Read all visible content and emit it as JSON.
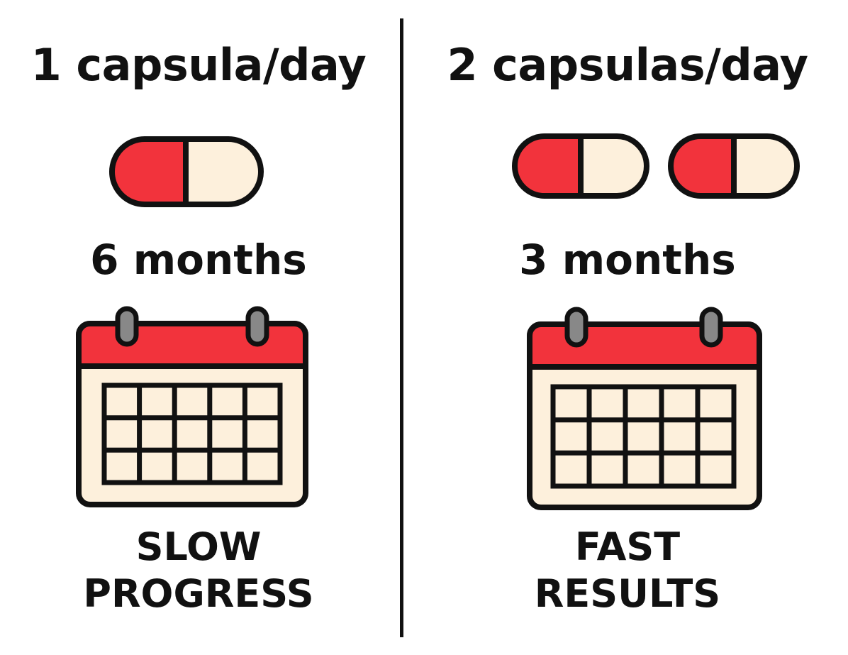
{
  "colors": {
    "capsule_red": "#f2333c",
    "capsule_cream": "#fdf0dc",
    "calendar_header": "#f2333c",
    "calendar_body": "#fdf0dc",
    "ring_gray": "#888888",
    "outline": "#111111",
    "background": "#ffffff"
  },
  "left": {
    "heading": "1 capsula/day",
    "capsule_count": 1,
    "duration": "6 months",
    "outcome_line1": "SLOW",
    "outcome_line2": "PROGRESS",
    "capsule_icon": "capsule-icon",
    "calendar_icon": "calendar-icon"
  },
  "right": {
    "heading": "2 capsulas/day",
    "capsule_count": 2,
    "duration": "3 months",
    "outcome_line1": "FAST",
    "outcome_line2": "RESULTS",
    "capsule_icon": "capsule-icon",
    "calendar_icon": "calendar-icon"
  }
}
